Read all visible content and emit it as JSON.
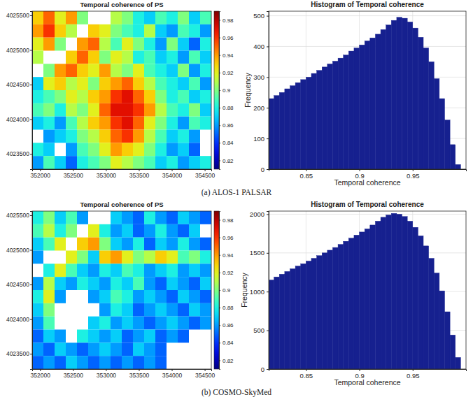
{
  "captions": [
    "(a) ALOS-1 PALSAR",
    "(b) COSMO-SkyMed"
  ],
  "chart_data": [
    {
      "type": "heatmap",
      "title": "Temporal coherence of PS",
      "x_edges": [
        351880,
        352050,
        352220,
        352390,
        352560,
        352730,
        352900,
        353070,
        353240,
        353410,
        353580,
        353750,
        353920,
        354090,
        354260,
        354430,
        354600
      ],
      "y_edges": [
        4025560,
        4025370,
        4025180,
        4024990,
        4024800,
        4024610,
        4024420,
        4024230,
        4024040,
        4023850,
        4023660,
        4023470,
        4023280
      ],
      "cells": [
        [
          0.93,
          0.95,
          0.92,
          0.94,
          0.9,
          null,
          null,
          0.91,
          0.9,
          0.88,
          0.87,
          0.89,
          0.88,
          0.9,
          0.87,
          0.89
        ],
        [
          0.94,
          0.96,
          0.93,
          0.91,
          null,
          0.93,
          0.92,
          0.9,
          0.89,
          0.88,
          0.91,
          0.87,
          0.86,
          0.89,
          0.88,
          0.86
        ],
        [
          0.92,
          0.94,
          0.9,
          null,
          0.94,
          0.95,
          0.91,
          0.89,
          0.92,
          0.9,
          0.88,
          0.86,
          0.9,
          0.87,
          0.85,
          0.88
        ],
        [
          0.91,
          null,
          null,
          0.93,
          0.95,
          0.93,
          0.9,
          0.92,
          0.91,
          0.88,
          0.89,
          0.87,
          0.88,
          0.86,
          0.89,
          0.87
        ],
        [
          null,
          0.9,
          0.94,
          0.95,
          0.93,
          0.92,
          0.94,
          0.91,
          0.9,
          0.92,
          0.89,
          0.88,
          0.87,
          0.9,
          0.86,
          0.88
        ],
        [
          0.87,
          0.92,
          0.93,
          0.91,
          0.92,
          0.9,
          0.93,
          0.94,
          0.95,
          0.93,
          0.91,
          0.89,
          0.88,
          0.87,
          0.89,
          0.86
        ],
        [
          0.88,
          0.89,
          0.9,
          0.92,
          0.91,
          0.93,
          0.94,
          0.96,
          0.97,
          0.95,
          0.93,
          0.9,
          0.88,
          0.89,
          0.87,
          0.88
        ],
        [
          0.89,
          0.9,
          0.88,
          0.91,
          0.9,
          0.92,
          0.95,
          0.97,
          0.97,
          0.96,
          0.94,
          0.91,
          0.89,
          0.88,
          0.9,
          0.87
        ],
        [
          0.87,
          0.88,
          0.86,
          0.89,
          0.91,
          0.93,
          0.94,
          0.96,
          0.97,
          0.95,
          0.92,
          0.9,
          0.88,
          0.86,
          0.89,
          0.88
        ],
        [
          null,
          0.86,
          0.87,
          0.88,
          0.9,
          0.91,
          0.93,
          0.95,
          0.96,
          0.94,
          0.91,
          0.89,
          0.87,
          0.88,
          0.86,
          null
        ],
        [
          0.88,
          0.87,
          null,
          0.86,
          0.89,
          0.9,
          0.92,
          0.94,
          0.93,
          0.92,
          0.9,
          0.88,
          0.86,
          0.87,
          0.85,
          null
        ],
        [
          0.86,
          0.89,
          0.87,
          0.85,
          0.88,
          0.89,
          0.9,
          0.92,
          0.91,
          0.9,
          0.89,
          0.87,
          0.88,
          0.86,
          0.87,
          0.88
        ]
      ],
      "xlim": [
        351880,
        354600
      ],
      "ylim": [
        4023280,
        4025560
      ],
      "xticks": [
        352000,
        352500,
        353000,
        353500,
        354000,
        354500
      ],
      "yticks": [
        4023500,
        4024000,
        4024500,
        4025000,
        4025500
      ],
      "colorbar_range": [
        0.81,
        0.99
      ],
      "colorbar_ticks": [
        0.82,
        0.84,
        0.86,
        0.88,
        0.9,
        0.92,
        0.94,
        0.96,
        0.98
      ]
    },
    {
      "type": "histogram",
      "title": "Histogram of Temporal coherence",
      "x_label": "Temporal coherence",
      "y_label": "Frequency",
      "bins": [
        0.815,
        0.82,
        0.825,
        0.83,
        0.835,
        0.84,
        0.845,
        0.85,
        0.855,
        0.86,
        0.865,
        0.87,
        0.875,
        0.88,
        0.885,
        0.89,
        0.895,
        0.9,
        0.905,
        0.91,
        0.915,
        0.92,
        0.925,
        0.93,
        0.935,
        0.94,
        0.945,
        0.95,
        0.955,
        0.96,
        0.965,
        0.97,
        0.975,
        0.98,
        0.985,
        0.99,
        0.995
      ],
      "counts": [
        230,
        240,
        250,
        262,
        272,
        282,
        292,
        300,
        312,
        322,
        333,
        343,
        352,
        362,
        372,
        385,
        395,
        405,
        418,
        428,
        440,
        455,
        470,
        485,
        495,
        492,
        480,
        460,
        430,
        395,
        350,
        295,
        230,
        160,
        80,
        15
      ],
      "color": "#16208f",
      "xlim": [
        0.815,
        1.0
      ],
      "ylim": [
        0,
        515
      ],
      "xticks": [
        0.85,
        0.9,
        0.95
      ],
      "yticks": [
        0,
        100,
        200,
        300,
        400,
        500
      ],
      "grid": true
    },
    {
      "type": "heatmap",
      "title": "Temporal coherence of PS",
      "x_edges": [
        351880,
        352050,
        352220,
        352390,
        352560,
        352730,
        352900,
        353070,
        353240,
        353410,
        353580,
        353750,
        353920,
        354090,
        354260,
        354430,
        354600
      ],
      "y_edges": [
        4025560,
        4025370,
        4025180,
        4024990,
        4024800,
        4024610,
        4024420,
        4024230,
        4024040,
        4023850,
        4023660,
        4023470,
        4023280
      ],
      "cells": [
        [
          0.88,
          0.9,
          0.87,
          0.89,
          0.86,
          null,
          null,
          0.87,
          0.86,
          0.85,
          0.88,
          0.86,
          0.85,
          0.87,
          0.86,
          0.85
        ],
        [
          0.89,
          0.91,
          0.88,
          0.9,
          null,
          0.92,
          0.88,
          0.86,
          0.87,
          0.85,
          0.86,
          0.88,
          0.86,
          0.85,
          0.87,
          null
        ],
        [
          0.87,
          0.89,
          0.92,
          null,
          0.93,
          0.94,
          0.9,
          0.87,
          0.86,
          0.88,
          0.85,
          0.87,
          0.86,
          0.88,
          0.86,
          0.85
        ],
        [
          0.86,
          null,
          null,
          0.92,
          0.9,
          0.87,
          0.93,
          0.94,
          0.92,
          0.9,
          0.91,
          0.93,
          0.92,
          0.89,
          0.9,
          0.88
        ],
        [
          null,
          0.88,
          0.92,
          0.89,
          0.87,
          0.86,
          0.88,
          0.87,
          0.89,
          0.88,
          0.86,
          0.87,
          0.88,
          0.86,
          0.87,
          0.86
        ],
        [
          0.86,
          0.91,
          0.87,
          0.86,
          0.88,
          0.87,
          0.86,
          0.88,
          0.87,
          0.89,
          0.86,
          0.85,
          0.87,
          0.86,
          0.85,
          0.87
        ],
        [
          0.88,
          0.92,
          0.86,
          null,
          null,
          0.86,
          0.87,
          0.89,
          0.88,
          0.86,
          0.87,
          0.86,
          0.85,
          0.87,
          0.86,
          0.85
        ],
        [
          0.87,
          0.9,
          null,
          null,
          null,
          null,
          0.86,
          0.88,
          0.87,
          0.85,
          0.86,
          0.87,
          0.86,
          0.85,
          0.87,
          0.86
        ],
        [
          0.86,
          0.89,
          null,
          null,
          null,
          0.87,
          0.88,
          0.86,
          0.87,
          0.86,
          0.85,
          0.86,
          0.87,
          0.86,
          0.85,
          0.86
        ],
        [
          0.85,
          0.87,
          0.86,
          null,
          0.88,
          0.87,
          0.86,
          0.87,
          0.85,
          0.86,
          0.87,
          0.85,
          0.86,
          0.85,
          null,
          null
        ],
        [
          0.86,
          0.85,
          0.87,
          0.86,
          0.85,
          0.86,
          0.87,
          0.86,
          0.85,
          0.87,
          0.86,
          0.85,
          null,
          null,
          null,
          null
        ],
        [
          0.85,
          0.86,
          0.85,
          0.87,
          0.86,
          0.85,
          0.86,
          0.85,
          0.86,
          0.85,
          0.86,
          0.85,
          null,
          null,
          null,
          null
        ]
      ],
      "xlim": [
        351880,
        354600
      ],
      "ylim": [
        4023280,
        4025560
      ],
      "xticks": [
        352000,
        352500,
        353000,
        353500,
        354000,
        354500
      ],
      "yticks": [
        4023500,
        4024000,
        4024500,
        4025000,
        4025500
      ],
      "colorbar_range": [
        0.81,
        0.99
      ],
      "colorbar_ticks": [
        0.82,
        0.84,
        0.86,
        0.88,
        0.9,
        0.92,
        0.94,
        0.96,
        0.98
      ]
    },
    {
      "type": "histogram",
      "title": "Histogram of Temporal coherence",
      "x_label": "Temporal coherence",
      "y_label": "Frequency",
      "bins": [
        0.815,
        0.82,
        0.825,
        0.83,
        0.835,
        0.84,
        0.845,
        0.85,
        0.855,
        0.86,
        0.865,
        0.87,
        0.875,
        0.88,
        0.885,
        0.89,
        0.895,
        0.9,
        0.905,
        0.91,
        0.915,
        0.92,
        0.925,
        0.93,
        0.935,
        0.94,
        0.945,
        0.95,
        0.955,
        0.96,
        0.965,
        0.97,
        0.975,
        0.98,
        0.985,
        0.99,
        0.995
      ],
      "counts": [
        1150,
        1190,
        1225,
        1260,
        1295,
        1330,
        1360,
        1395,
        1430,
        1465,
        1500,
        1535,
        1570,
        1610,
        1650,
        1690,
        1730,
        1770,
        1810,
        1860,
        1910,
        1960,
        1990,
        2010,
        2000,
        1970,
        1910,
        1830,
        1720,
        1590,
        1430,
        1240,
        1010,
        740,
        440,
        150
      ],
      "color": "#16208f",
      "xlim": [
        0.815,
        1.0
      ],
      "ylim": [
        0,
        2040
      ],
      "xticks": [
        0.85,
        0.9,
        0.95
      ],
      "yticks": [
        0,
        500,
        1000,
        1500,
        2000
      ],
      "grid": true
    }
  ]
}
